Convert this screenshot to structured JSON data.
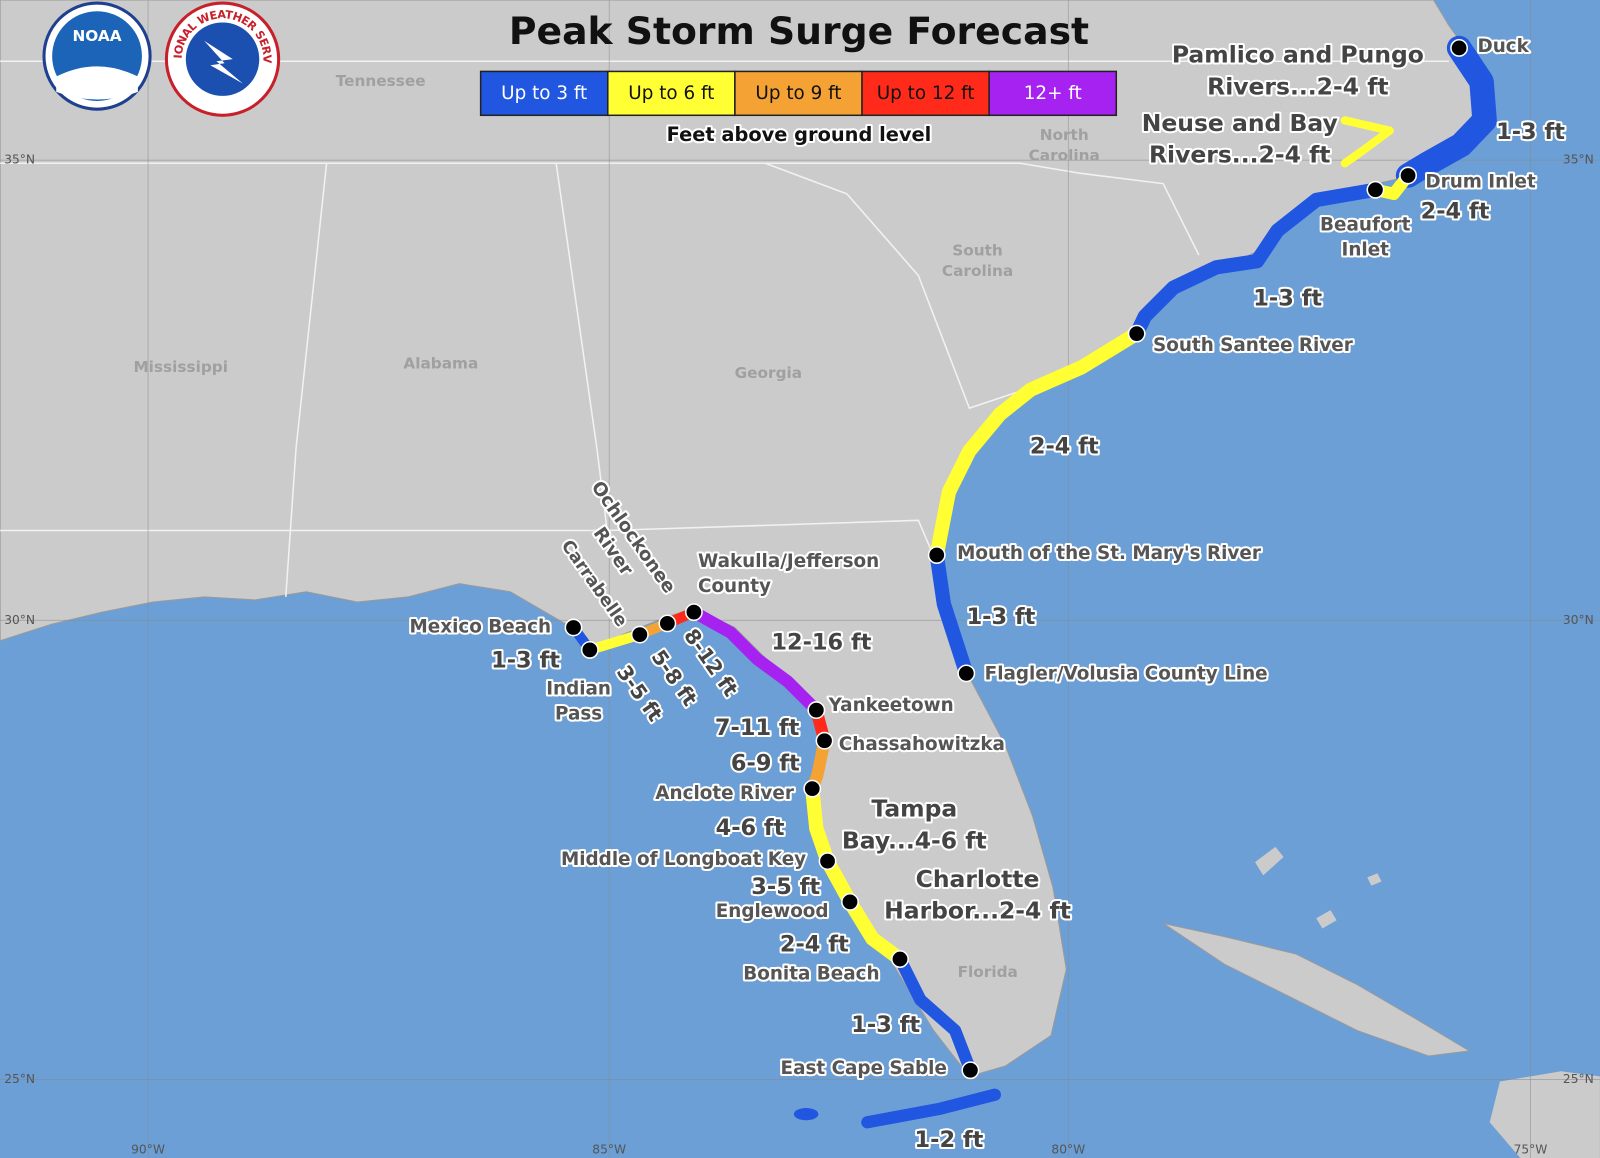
{
  "header": {
    "title": "Peak Storm Surge Forecast",
    "legend": [
      {
        "label": "Up to 3 ft",
        "color": "#2156e0"
      },
      {
        "label": "Up to 6 ft",
        "color": "#ffff33"
      },
      {
        "label": "Up to 9 ft",
        "color": "#f5a235"
      },
      {
        "label": "Up to 12 ft",
        "color": "#ff2a1a"
      },
      {
        "label": "12+ ft",
        "color": "#a522f0"
      }
    ],
    "legend_caption": "Feet above ground level"
  },
  "logos": {
    "noaa": "NOAA",
    "nws": "NATIONAL WEATHER SERVICE"
  },
  "states": [
    {
      "lines": [
        "Tennessee"
      ]
    },
    {
      "lines": [
        "North",
        "Carolina"
      ]
    },
    {
      "lines": [
        "South",
        "Carolina"
      ]
    },
    {
      "lines": [
        "Mississippi"
      ]
    },
    {
      "lines": [
        "Alabama"
      ]
    },
    {
      "lines": [
        "Georgia"
      ]
    },
    {
      "lines": [
        "Florida"
      ]
    }
  ],
  "graticule": {
    "latitudes": [
      "35°N",
      "30°N",
      "25°N"
    ],
    "longitudes": [
      "90°W",
      "85°W",
      "80°W",
      "75°W"
    ]
  },
  "labels": [
    {
      "lines": [
        "Pamlico and Pungo",
        "Rivers...2-4 ft"
      ]
    },
    {
      "lines": [
        "Neuse and Bay",
        "Rivers...2-4 ft"
      ]
    },
    {
      "lines": [
        "Duck"
      ]
    },
    {
      "lines": [
        "1-3 ft"
      ]
    },
    {
      "lines": [
        "Drum Inlet"
      ]
    },
    {
      "lines": [
        "2-4 ft"
      ]
    },
    {
      "lines": [
        "Beaufort",
        "Inlet"
      ]
    },
    {
      "lines": [
        "1-3 ft"
      ]
    },
    {
      "lines": [
        "South Santee River"
      ]
    },
    {
      "lines": [
        "2-4 ft"
      ]
    },
    {
      "lines": [
        "Mouth of the St. Mary's River"
      ]
    },
    {
      "lines": [
        "1-3 ft"
      ]
    },
    {
      "lines": [
        "Flagler/Volusia County Line"
      ]
    },
    {
      "lines": [
        "Wakulla/Jefferson",
        "County"
      ]
    },
    {
      "lines": [
        "12-16 ft"
      ]
    },
    {
      "lines": [
        "Ochlockonee",
        "River"
      ]
    },
    {
      "lines": [
        "Carrabelle"
      ]
    },
    {
      "lines": [
        "8-12 ft"
      ]
    },
    {
      "lines": [
        "5-8 ft"
      ]
    },
    {
      "lines": [
        "3-5 ft"
      ]
    },
    {
      "lines": [
        "Mexico Beach"
      ]
    },
    {
      "lines": [
        "1-3 ft"
      ]
    },
    {
      "lines": [
        "Indian",
        "Pass"
      ]
    },
    {
      "lines": [
        "Yankeetown"
      ]
    },
    {
      "lines": [
        "7-11 ft"
      ]
    },
    {
      "lines": [
        "Chassahowitzka"
      ]
    },
    {
      "lines": [
        "6-9 ft"
      ]
    },
    {
      "lines": [
        "Anclote River"
      ]
    },
    {
      "lines": [
        "Tampa",
        "Bay...4-6 ft"
      ]
    },
    {
      "lines": [
        "4-6 ft"
      ]
    },
    {
      "lines": [
        "Middle of Longboat Key"
      ]
    },
    {
      "lines": [
        "3-5 ft"
      ]
    },
    {
      "lines": [
        "Charlotte",
        "Harbor...2-4 ft"
      ]
    },
    {
      "lines": [
        "Englewood"
      ]
    },
    {
      "lines": [
        "2-4 ft"
      ]
    },
    {
      "lines": [
        "Bonita Beach"
      ]
    },
    {
      "lines": [
        "1-3 ft"
      ]
    },
    {
      "lines": [
        "East Cape Sable"
      ]
    },
    {
      "lines": [
        "1-2 ft"
      ]
    }
  ]
}
